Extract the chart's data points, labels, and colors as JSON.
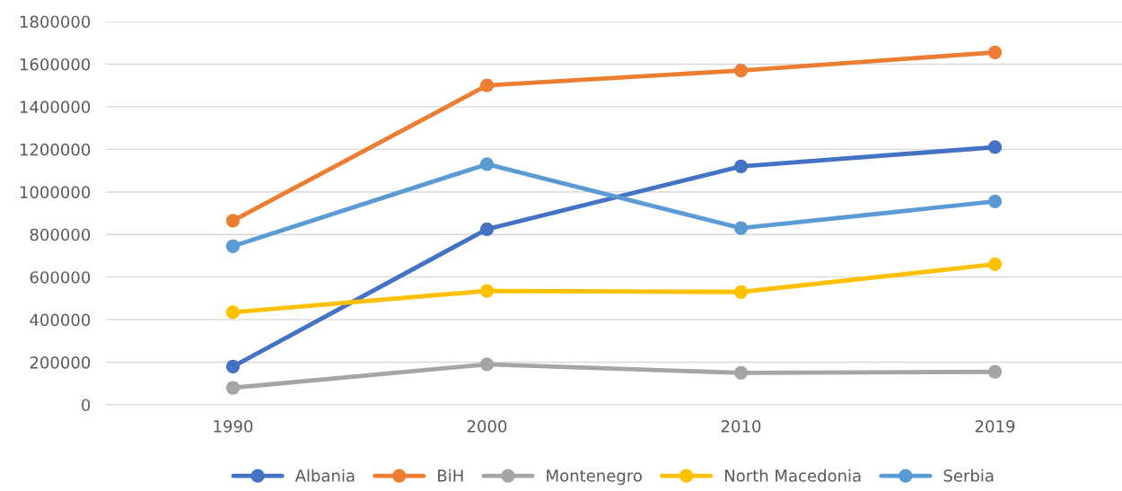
{
  "chart_data": {
    "type": "line",
    "categories": [
      "1990",
      "2000",
      "2010",
      "2019"
    ],
    "series": [
      {
        "name": "Albania",
        "color": "#4472c4",
        "values": [
          180000,
          825000,
          1120000,
          1210000
        ]
      },
      {
        "name": "BiH",
        "color": "#ed7d31",
        "values": [
          865000,
          1500000,
          1570000,
          1655000
        ]
      },
      {
        "name": "Montenegro",
        "color": "#a5a5a5",
        "values": [
          80000,
          190000,
          150000,
          155000
        ]
      },
      {
        "name": "North Macedonia",
        "color": "#ffc000",
        "values": [
          435000,
          535000,
          530000,
          660000
        ]
      },
      {
        "name": "Serbia",
        "color": "#5b9bd5",
        "values": [
          745000,
          1130000,
          830000,
          955000
        ]
      }
    ],
    "ylim": [
      0,
      1800000
    ],
    "yticks": [
      0,
      200000,
      400000,
      600000,
      800000,
      1000000,
      1200000,
      1400000,
      1600000,
      1800000
    ],
    "grid": "y",
    "legend": "bottom",
    "marker": "circle",
    "line_style": "solid"
  }
}
